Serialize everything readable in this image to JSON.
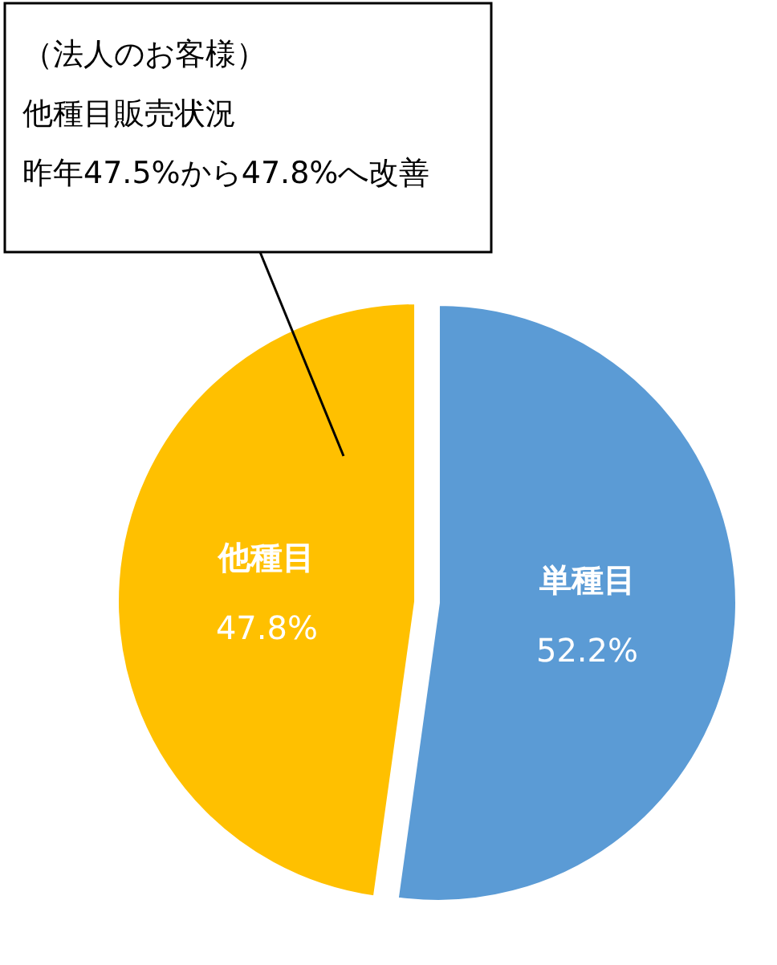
{
  "chart_data": {
    "type": "pie",
    "categories": [
      "単種目",
      "他種目"
    ],
    "values": [
      52.2,
      47.8
    ],
    "colors": [
      "#5b9bd5",
      "#ffc000"
    ],
    "value_labels": [
      "52.2%",
      "47.8%"
    ],
    "annotations": [
      "（法人のお客様）",
      "他種目販売状況",
      "昨年47.5%から47.8%へ改善"
    ]
  }
}
